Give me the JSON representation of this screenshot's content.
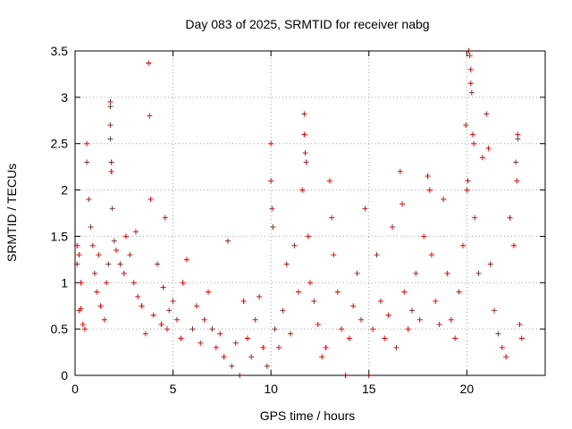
{
  "chart_data": {
    "type": "scatter",
    "title": "Day 083 of 2025, SRMTID for receiver nabg",
    "xlabel": "GPS time / hours",
    "ylabel": "SRMTID / TECUs",
    "xlim": [
      0,
      24
    ],
    "ylim": [
      0,
      3.5
    ],
    "xticks": [
      0,
      5,
      10,
      15,
      20
    ],
    "yticks": [
      0,
      0.5,
      1,
      1.5,
      2,
      2.5,
      3,
      3.5
    ],
    "xtick_labels": [
      "0",
      "5",
      "10",
      "15",
      "20"
    ],
    "ytick_labels": [
      "0",
      "0.5",
      "1",
      "1.5",
      "2",
      "2.5",
      "3",
      "3.5"
    ],
    "grid": true,
    "marker": "+",
    "color": "#ff0000",
    "series": [
      {
        "name": "SRMTID",
        "points": [
          [
            0.1,
            1.4
          ],
          [
            0.1,
            1.2
          ],
          [
            0.2,
            1.3
          ],
          [
            0.2,
            0.7
          ],
          [
            0.3,
            0.72
          ],
          [
            0.3,
            1.0
          ],
          [
            0.4,
            0.55
          ],
          [
            0.5,
            0.5
          ],
          [
            0.6,
            2.5
          ],
          [
            0.6,
            2.3
          ],
          [
            0.7,
            1.9
          ],
          [
            0.8,
            1.6
          ],
          [
            0.9,
            1.4
          ],
          [
            1.0,
            1.1
          ],
          [
            1.1,
            0.9
          ],
          [
            1.2,
            1.3
          ],
          [
            1.3,
            0.75
          ],
          [
            1.5,
            0.6
          ],
          [
            1.6,
            1.0
          ],
          [
            1.7,
            1.2
          ],
          [
            1.8,
            2.95
          ],
          [
            1.8,
            2.9
          ],
          [
            1.8,
            2.7
          ],
          [
            1.8,
            2.55
          ],
          [
            1.85,
            2.3
          ],
          [
            1.85,
            2.2
          ],
          [
            1.9,
            1.8
          ],
          [
            2.0,
            1.45
          ],
          [
            2.1,
            1.35
          ],
          [
            2.3,
            1.2
          ],
          [
            2.5,
            1.1
          ],
          [
            2.6,
            1.5
          ],
          [
            2.8,
            1.3
          ],
          [
            3.0,
            1.0
          ],
          [
            3.1,
            1.55
          ],
          [
            3.2,
            0.85
          ],
          [
            3.4,
            0.75
          ],
          [
            3.6,
            0.45
          ],
          [
            3.75,
            3.37
          ],
          [
            3.8,
            2.8
          ],
          [
            3.85,
            1.9
          ],
          [
            4.0,
            0.65
          ],
          [
            4.2,
            1.2
          ],
          [
            4.4,
            0.55
          ],
          [
            4.5,
            0.95
          ],
          [
            4.6,
            1.7
          ],
          [
            4.7,
            0.5
          ],
          [
            4.8,
            0.7
          ],
          [
            5.0,
            0.8
          ],
          [
            5.2,
            0.6
          ],
          [
            5.4,
            0.4
          ],
          [
            5.5,
            1.0
          ],
          [
            5.7,
            1.25
          ],
          [
            6.0,
            0.5
          ],
          [
            6.2,
            0.75
          ],
          [
            6.4,
            0.35
          ],
          [
            6.6,
            0.6
          ],
          [
            6.8,
            0.9
          ],
          [
            7.0,
            0.5
          ],
          [
            7.2,
            0.3
          ],
          [
            7.4,
            0.45
          ],
          [
            7.6,
            0.2
          ],
          [
            7.8,
            1.45
          ],
          [
            8.0,
            0.1
          ],
          [
            8.2,
            0.35
          ],
          [
            8.4,
            0.0
          ],
          [
            8.6,
            0.8
          ],
          [
            8.8,
            0.4
          ],
          [
            9.0,
            0.2
          ],
          [
            9.2,
            0.6
          ],
          [
            9.4,
            0.85
          ],
          [
            9.6,
            0.3
          ],
          [
            9.8,
            0.1
          ],
          [
            10.0,
            2.5
          ],
          [
            10.0,
            2.1
          ],
          [
            10.05,
            1.8
          ],
          [
            10.1,
            1.6
          ],
          [
            10.2,
            0.5
          ],
          [
            10.4,
            0.3
          ],
          [
            10.6,
            0.7
          ],
          [
            10.8,
            1.2
          ],
          [
            11.0,
            0.45
          ],
          [
            11.2,
            1.4
          ],
          [
            11.4,
            0.9
          ],
          [
            11.6,
            2.0
          ],
          [
            11.7,
            2.82
          ],
          [
            11.7,
            2.6
          ],
          [
            11.75,
            2.4
          ],
          [
            11.8,
            2.3
          ],
          [
            11.9,
            1.5
          ],
          [
            12.0,
            1.0
          ],
          [
            12.2,
            0.8
          ],
          [
            12.4,
            0.55
          ],
          [
            12.6,
            0.2
          ],
          [
            12.8,
            0.3
          ],
          [
            13.0,
            2.1
          ],
          [
            13.1,
            1.7
          ],
          [
            13.2,
            1.3
          ],
          [
            13.4,
            0.9
          ],
          [
            13.6,
            0.5
          ],
          [
            13.8,
            0.0
          ],
          [
            14.0,
            0.4
          ],
          [
            14.2,
            0.75
          ],
          [
            14.4,
            1.1
          ],
          [
            14.6,
            0.6
          ],
          [
            14.8,
            1.8
          ],
          [
            15.0,
            0.0
          ],
          [
            15.2,
            0.5
          ],
          [
            15.4,
            1.3
          ],
          [
            15.6,
            0.8
          ],
          [
            15.8,
            0.4
          ],
          [
            16.0,
            0.65
          ],
          [
            16.2,
            1.6
          ],
          [
            16.4,
            0.3
          ],
          [
            16.6,
            2.2
          ],
          [
            16.7,
            1.85
          ],
          [
            16.8,
            0.9
          ],
          [
            17.0,
            0.5
          ],
          [
            17.2,
            0.7
          ],
          [
            17.4,
            1.1
          ],
          [
            17.6,
            0.6
          ],
          [
            17.8,
            1.5
          ],
          [
            18.0,
            2.15
          ],
          [
            18.1,
            2.0
          ],
          [
            18.2,
            1.3
          ],
          [
            18.4,
            0.8
          ],
          [
            18.6,
            0.55
          ],
          [
            18.8,
            1.9
          ],
          [
            19.0,
            1.1
          ],
          [
            19.2,
            0.6
          ],
          [
            19.4,
            0.4
          ],
          [
            19.6,
            0.9
          ],
          [
            19.8,
            1.4
          ],
          [
            19.95,
            2.7
          ],
          [
            20.0,
            2.0
          ],
          [
            20.05,
            2.1
          ],
          [
            20.1,
            3.5
          ],
          [
            20.15,
            3.45
          ],
          [
            20.2,
            3.3
          ],
          [
            20.2,
            3.15
          ],
          [
            20.25,
            3.05
          ],
          [
            20.3,
            2.6
          ],
          [
            20.35,
            2.5
          ],
          [
            20.4,
            1.7
          ],
          [
            20.6,
            1.1
          ],
          [
            20.8,
            2.35
          ],
          [
            21.0,
            2.82
          ],
          [
            21.1,
            2.45
          ],
          [
            21.2,
            1.2
          ],
          [
            21.4,
            0.7
          ],
          [
            21.6,
            0.45
          ],
          [
            21.8,
            0.3
          ],
          [
            22.0,
            0.2
          ],
          [
            22.2,
            1.7
          ],
          [
            22.4,
            1.4
          ],
          [
            22.5,
            2.3
          ],
          [
            22.55,
            2.1
          ],
          [
            22.6,
            2.6
          ],
          [
            22.6,
            2.55
          ],
          [
            22.7,
            0.55
          ],
          [
            22.8,
            0.4
          ]
        ]
      }
    ]
  }
}
